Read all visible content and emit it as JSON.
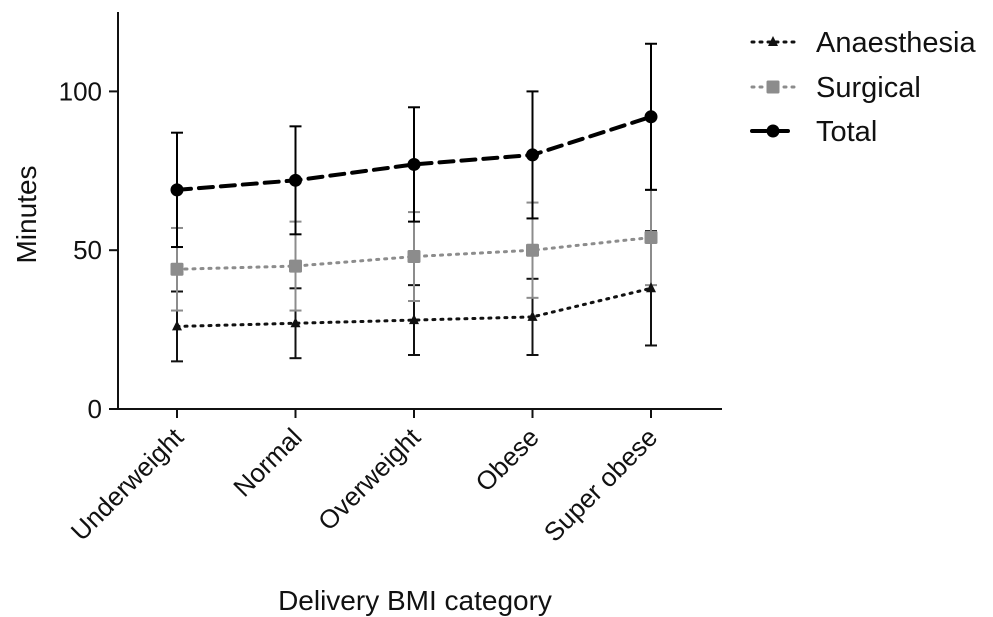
{
  "chart_data": {
    "type": "line",
    "xlabel": "Delivery BMI category",
    "ylabel": "Minutes",
    "categories": [
      "Underweight",
      "Normal",
      "Overweight",
      "Obese",
      "Super obese"
    ],
    "ylim": [
      0,
      125
    ],
    "yticks": [
      0,
      50,
      100
    ],
    "legend_position": "top-right",
    "grid": false,
    "series": [
      {
        "name": "Anaesthesia",
        "values": [
          26,
          27,
          28,
          29,
          38
        ],
        "err_low": [
          15,
          16,
          17,
          17,
          20
        ],
        "err_high": [
          37,
          38,
          39,
          41,
          56
        ],
        "color": "#111111",
        "line_style": "dotted",
        "marker": "triangle"
      },
      {
        "name": "Surgical",
        "values": [
          44,
          45,
          48,
          50,
          54
        ],
        "err_low": [
          31,
          31,
          34,
          35,
          39
        ],
        "err_high": [
          57,
          59,
          62,
          65,
          69
        ],
        "color": "#8c8c8c",
        "line_style": "dotted",
        "marker": "square"
      },
      {
        "name": "Total",
        "values": [
          69,
          72,
          77,
          80,
          92
        ],
        "err_low": [
          51,
          55,
          59,
          60,
          69
        ],
        "err_high": [
          87,
          89,
          95,
          100,
          115
        ],
        "color": "#000000",
        "line_style": "dashed",
        "marker": "circle"
      }
    ]
  }
}
